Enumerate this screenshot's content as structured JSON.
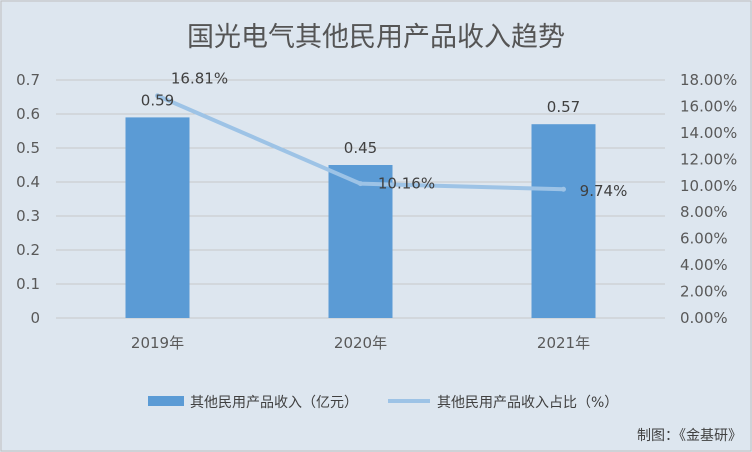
{
  "chart_data": {
    "type": "bar",
    "title": "国光电气其他民用产品收入趋势",
    "categories": [
      "2019年",
      "2020年",
      "2021年"
    ],
    "series": [
      {
        "name": "其他民用产品收入（亿元）",
        "type": "bar",
        "axis": "left",
        "values": [
          0.59,
          0.45,
          0.57
        ],
        "value_labels": [
          "0.59",
          "0.45",
          "0.57"
        ],
        "color": "#5b9bd5"
      },
      {
        "name": "其他民用产品收入占比（%）",
        "type": "line",
        "axis": "right",
        "values": [
          16.81,
          10.16,
          9.74
        ],
        "value_labels": [
          "16.81%",
          "10.16%",
          "9.74%"
        ],
        "color": "#9dc3e6"
      }
    ],
    "y_left": {
      "lim": [
        0,
        0.7
      ],
      "ticks": [
        "0",
        "0.1",
        "0.2",
        "0.3",
        "0.4",
        "0.5",
        "0.6",
        "0.7"
      ]
    },
    "y_right": {
      "lim": [
        0,
        18
      ],
      "ticks": [
        "0.00%",
        "2.00%",
        "4.00%",
        "6.00%",
        "8.00%",
        "10.00%",
        "12.00%",
        "14.00%",
        "16.00%",
        "18.00%"
      ]
    },
    "grid": true,
    "legend": "bottom"
  },
  "source_note": "制图：《金基研》"
}
